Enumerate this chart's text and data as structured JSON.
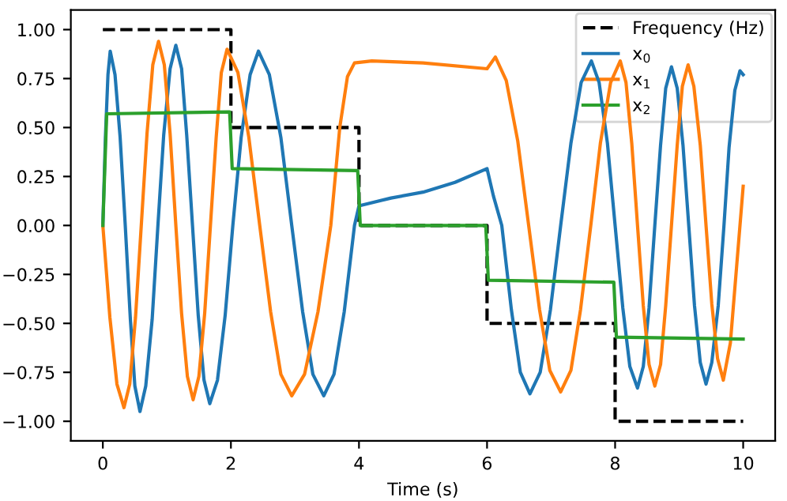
{
  "chart_data": {
    "type": "line",
    "xlabel": "Time (s)",
    "xlim": [
      -0.5,
      10.5
    ],
    "ylim": [
      -1.1,
      1.1
    ],
    "xticks": [
      0,
      2,
      4,
      6,
      8,
      10
    ],
    "yticks": [
      {
        "value": -1,
        "label": "−1.00"
      },
      {
        "value": -0.75,
        "label": "−0.75"
      },
      {
        "value": -0.5,
        "label": "−0.50"
      },
      {
        "value": -0.25,
        "label": "−0.25"
      },
      {
        "value": 0,
        "label": "0.00"
      },
      {
        "value": 0.25,
        "label": "0.25"
      },
      {
        "value": 0.5,
        "label": "0.50"
      },
      {
        "value": 0.75,
        "label": "0.75"
      },
      {
        "value": 1,
        "label": "1.00"
      }
    ],
    "legend": "top right",
    "grid": false,
    "line_style": "solid",
    "marker": "none",
    "series": [
      {
        "name": "Frequency (Hz)",
        "type": "step",
        "color": "#000000",
        "line_style": "dashed",
        "x": [
          0,
          2,
          4,
          6,
          8,
          10
        ],
        "values": [
          1,
          0.5,
          0,
          -0.5,
          -1,
          -1
        ]
      },
      {
        "name": "x$_{0}$",
        "color": "#1f77b4",
        "x": [
          0,
          0.04,
          0.08,
          0.115,
          0.19,
          0.27,
          0.35,
          0.43,
          0.5,
          0.58,
          0.67,
          0.77,
          0.86,
          0.95,
          1.05,
          1.14,
          1.23,
          1.31,
          1.4,
          1.49,
          1.58,
          1.67,
          1.79,
          1.91,
          2.03,
          2.16,
          2.3,
          2.43,
          2.6,
          2.78,
          2.95,
          3.12,
          3.28,
          3.45,
          3.61,
          3.77,
          3.93,
          4,
          4.5,
          5,
          5.5,
          6,
          6.1,
          6.23,
          6.38,
          6.52,
          6.67,
          6.83,
          6.99,
          7.15,
          7.31,
          7.47,
          7.63,
          7.75,
          7.88,
          8.0,
          8.12,
          8.23,
          8.35,
          8.44,
          8.53,
          8.62,
          8.71,
          8.79,
          8.88,
          8.97,
          9.06,
          9.15,
          9.24,
          9.33,
          9.42,
          9.51,
          9.61,
          9.7,
          9.78,
          9.87,
          9.95,
          10
        ],
        "values": [
          0,
          0.45,
          0.77,
          0.89,
          0.77,
          0.45,
          0,
          -0.48,
          -0.82,
          -0.95,
          -0.82,
          -0.48,
          0,
          0.46,
          0.8,
          0.92,
          0.8,
          0.46,
          0,
          -0.46,
          -0.79,
          -0.91,
          -0.79,
          -0.46,
          0,
          0.45,
          0.77,
          0.89,
          0.77,
          0.45,
          0,
          -0.44,
          -0.76,
          -0.87,
          -0.76,
          -0.44,
          0,
          0.1,
          0.14,
          0.17,
          0.22,
          0.29,
          0.15,
          0,
          -0.43,
          -0.75,
          -0.86,
          -0.75,
          -0.43,
          0,
          0.42,
          0.73,
          0.84,
          0.73,
          0.42,
          0,
          -0.42,
          -0.72,
          -0.83,
          -0.72,
          -0.42,
          0,
          0.41,
          0.7,
          0.81,
          0.7,
          0.41,
          0,
          -0.41,
          -0.7,
          -0.81,
          -0.7,
          -0.41,
          0,
          0.4,
          0.69,
          0.79,
          0.77
        ]
      },
      {
        "name": "x$_{1}$",
        "color": "#ff7f0e",
        "x": [
          0,
          0.11,
          0.22,
          0.33,
          0.42,
          0.51,
          0.6,
          0.69,
          0.78,
          0.87,
          0.96,
          1.05,
          1.14,
          1.23,
          1.32,
          1.41,
          1.5,
          1.59,
          1.68,
          1.77,
          1.85,
          1.94,
          2.11,
          2.28,
          2.45,
          2.62,
          2.78,
          2.95,
          3.15,
          3.36,
          3.56,
          3.7,
          3.82,
          3.93,
          4.2,
          5,
          6,
          6.13,
          6.3,
          6.48,
          6.65,
          6.82,
          6.98,
          7.15,
          7.31,
          7.46,
          7.62,
          7.77,
          7.93,
          8.08,
          8.17,
          8.26,
          8.35,
          8.44,
          8.53,
          8.62,
          8.71,
          8.79,
          8.88,
          8.97,
          9.05,
          9.14,
          9.23,
          9.33,
          9.42,
          9.51,
          9.6,
          9.69,
          9.8,
          9.9,
          10
        ],
        "values": [
          0,
          -0.47,
          -0.81,
          -0.93,
          -0.81,
          -0.47,
          0,
          0.47,
          0.82,
          0.94,
          0.82,
          0.47,
          0,
          -0.45,
          -0.77,
          -0.89,
          -0.77,
          -0.45,
          0,
          0.45,
          0.78,
          0.9,
          0.78,
          0.45,
          0,
          -0.44,
          -0.76,
          -0.87,
          -0.76,
          -0.44,
          0,
          0.5,
          0.76,
          0.83,
          0.84,
          0.83,
          0.8,
          0.86,
          0.74,
          0.43,
          0,
          -0.43,
          -0.74,
          -0.85,
          -0.74,
          -0.43,
          0,
          0.42,
          0.73,
          0.84,
          0.73,
          0.42,
          0,
          -0.41,
          -0.71,
          -0.82,
          -0.71,
          -0.41,
          0,
          0.41,
          0.71,
          0.82,
          0.71,
          0.41,
          0,
          -0.4,
          -0.68,
          -0.79,
          -0.6,
          -0.2,
          0.2
        ]
      },
      {
        "name": "x$_{2}$",
        "color": "#2ca02c",
        "x": [
          0,
          0.06,
          1.98,
          2.02,
          3.98,
          4.02,
          5.98,
          6.02,
          7.98,
          8.02,
          10
        ],
        "values": [
          0,
          0.57,
          0.58,
          0.29,
          0.28,
          0,
          0,
          -0.28,
          -0.29,
          -0.57,
          -0.58
        ]
      }
    ]
  }
}
